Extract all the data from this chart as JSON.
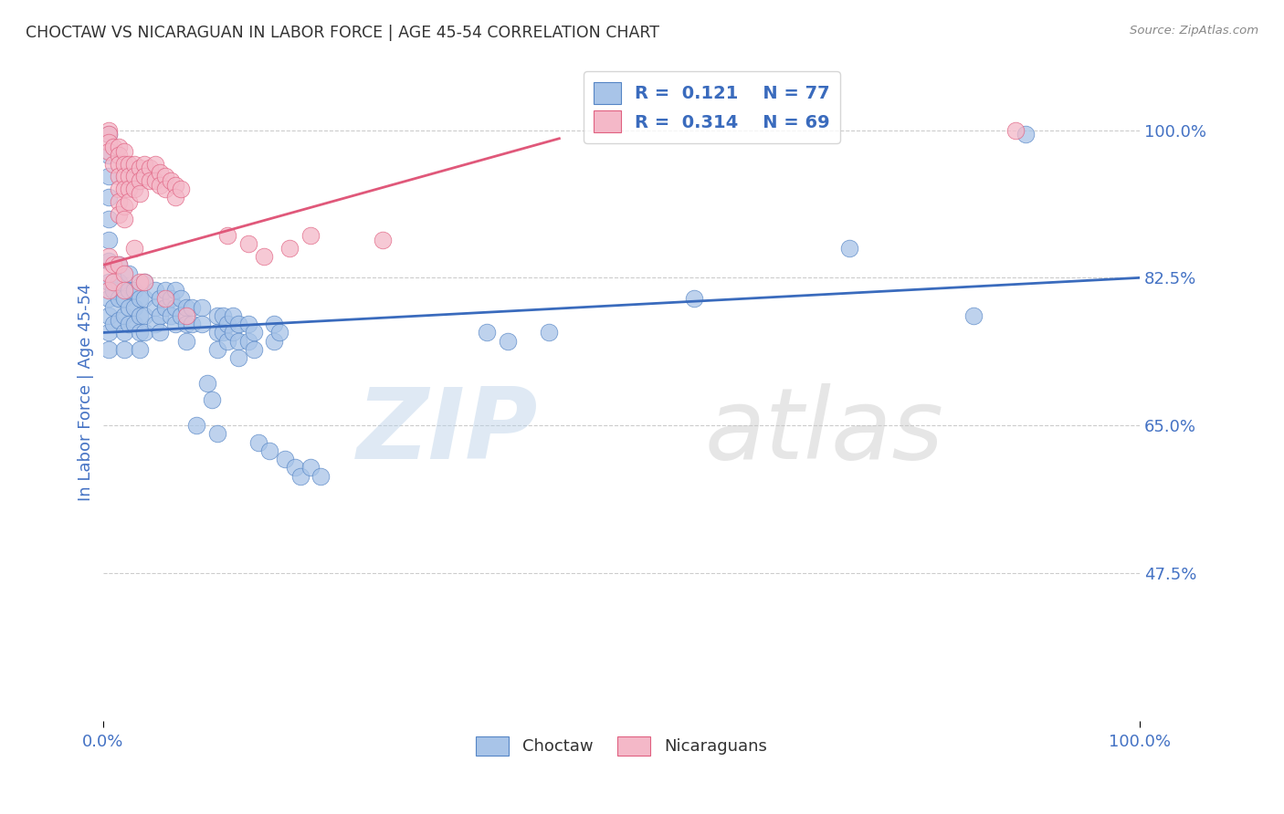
{
  "title": "CHOCTAW VS NICARAGUAN IN LABOR FORCE | AGE 45-54 CORRELATION CHART",
  "source": "Source: ZipAtlas.com",
  "ylabel": "In Labor Force | Age 45-54",
  "xlim": [
    0.0,
    1.0
  ],
  "ylim": [
    0.3,
    1.08
  ],
  "xtick_labels": [
    "0.0%",
    "100.0%"
  ],
  "xtick_positions": [
    0.0,
    1.0
  ],
  "ytick_labels": [
    "100.0%",
    "82.5%",
    "65.0%",
    "47.5%"
  ],
  "ytick_positions": [
    1.0,
    0.825,
    0.65,
    0.475
  ],
  "choctaw_color": "#a8c4e8",
  "nicaraguan_color": "#f4b8c8",
  "choctaw_edge_color": "#5585c5",
  "nicaraguan_edge_color": "#e06080",
  "choctaw_line_color": "#3a6bbd",
  "nicaraguan_line_color": "#e0587a",
  "choctaw_R": "0.121",
  "choctaw_N": "77",
  "nicaraguan_R": "0.314",
  "nicaraguan_N": "69",
  "watermark_zip": "ZIP",
  "watermark_atlas": "atlas",
  "background_color": "#ffffff",
  "grid_color": "#cccccc",
  "title_color": "#333333",
  "right_tick_color": "#4472c4",
  "bottom_tick_color": "#4472c4",
  "ylabel_color": "#4472c4",
  "legend_text_color": "#4472c4",
  "choctaw_points": [
    [
      0.005,
      0.995
    ],
    [
      0.005,
      0.97
    ],
    [
      0.005,
      0.945
    ],
    [
      0.005,
      0.92
    ],
    [
      0.005,
      0.895
    ],
    [
      0.005,
      0.87
    ],
    [
      0.005,
      0.845
    ],
    [
      0.005,
      0.82
    ],
    [
      0.005,
      0.8
    ],
    [
      0.005,
      0.78
    ],
    [
      0.005,
      0.76
    ],
    [
      0.005,
      0.74
    ],
    [
      0.01,
      0.81
    ],
    [
      0.01,
      0.79
    ],
    [
      0.01,
      0.77
    ],
    [
      0.015,
      0.84
    ],
    [
      0.015,
      0.82
    ],
    [
      0.015,
      0.8
    ],
    [
      0.015,
      0.775
    ],
    [
      0.02,
      0.8
    ],
    [
      0.02,
      0.78
    ],
    [
      0.02,
      0.76
    ],
    [
      0.02,
      0.74
    ],
    [
      0.025,
      0.83
    ],
    [
      0.025,
      0.81
    ],
    [
      0.025,
      0.79
    ],
    [
      0.025,
      0.77
    ],
    [
      0.03,
      0.81
    ],
    [
      0.03,
      0.79
    ],
    [
      0.03,
      0.77
    ],
    [
      0.035,
      0.8
    ],
    [
      0.035,
      0.78
    ],
    [
      0.035,
      0.76
    ],
    [
      0.035,
      0.74
    ],
    [
      0.04,
      0.82
    ],
    [
      0.04,
      0.8
    ],
    [
      0.04,
      0.78
    ],
    [
      0.04,
      0.76
    ],
    [
      0.05,
      0.81
    ],
    [
      0.05,
      0.79
    ],
    [
      0.05,
      0.77
    ],
    [
      0.055,
      0.8
    ],
    [
      0.055,
      0.78
    ],
    [
      0.055,
      0.76
    ],
    [
      0.06,
      0.81
    ],
    [
      0.06,
      0.79
    ],
    [
      0.065,
      0.8
    ],
    [
      0.065,
      0.78
    ],
    [
      0.07,
      0.81
    ],
    [
      0.07,
      0.79
    ],
    [
      0.07,
      0.77
    ],
    [
      0.075,
      0.8
    ],
    [
      0.075,
      0.78
    ],
    [
      0.08,
      0.79
    ],
    [
      0.08,
      0.77
    ],
    [
      0.08,
      0.75
    ],
    [
      0.085,
      0.79
    ],
    [
      0.085,
      0.77
    ],
    [
      0.095,
      0.79
    ],
    [
      0.095,
      0.77
    ],
    [
      0.11,
      0.78
    ],
    [
      0.11,
      0.76
    ],
    [
      0.11,
      0.74
    ],
    [
      0.115,
      0.78
    ],
    [
      0.115,
      0.76
    ],
    [
      0.12,
      0.77
    ],
    [
      0.12,
      0.75
    ],
    [
      0.125,
      0.78
    ],
    [
      0.125,
      0.76
    ],
    [
      0.13,
      0.77
    ],
    [
      0.13,
      0.75
    ],
    [
      0.13,
      0.73
    ],
    [
      0.14,
      0.77
    ],
    [
      0.14,
      0.75
    ],
    [
      0.145,
      0.76
    ],
    [
      0.145,
      0.74
    ],
    [
      0.165,
      0.77
    ],
    [
      0.165,
      0.75
    ],
    [
      0.17,
      0.76
    ],
    [
      0.1,
      0.7
    ],
    [
      0.105,
      0.68
    ],
    [
      0.09,
      0.65
    ],
    [
      0.11,
      0.64
    ],
    [
      0.15,
      0.63
    ],
    [
      0.16,
      0.62
    ],
    [
      0.175,
      0.61
    ],
    [
      0.185,
      0.6
    ],
    [
      0.19,
      0.59
    ],
    [
      0.2,
      0.6
    ],
    [
      0.21,
      0.59
    ],
    [
      0.37,
      0.76
    ],
    [
      0.39,
      0.75
    ],
    [
      0.43,
      0.76
    ],
    [
      0.57,
      0.8
    ],
    [
      0.72,
      0.86
    ],
    [
      0.84,
      0.78
    ],
    [
      0.89,
      0.995
    ]
  ],
  "nicaraguan_points": [
    [
      0.005,
      1.0
    ],
    [
      0.005,
      0.995
    ],
    [
      0.005,
      0.985
    ],
    [
      0.005,
      0.975
    ],
    [
      0.01,
      0.98
    ],
    [
      0.01,
      0.96
    ],
    [
      0.015,
      0.98
    ],
    [
      0.015,
      0.97
    ],
    [
      0.015,
      0.96
    ],
    [
      0.015,
      0.945
    ],
    [
      0.015,
      0.93
    ],
    [
      0.015,
      0.915
    ],
    [
      0.015,
      0.9
    ],
    [
      0.02,
      0.975
    ],
    [
      0.02,
      0.96
    ],
    [
      0.02,
      0.945
    ],
    [
      0.02,
      0.93
    ],
    [
      0.02,
      0.91
    ],
    [
      0.02,
      0.895
    ],
    [
      0.025,
      0.96
    ],
    [
      0.025,
      0.945
    ],
    [
      0.025,
      0.93
    ],
    [
      0.025,
      0.915
    ],
    [
      0.03,
      0.96
    ],
    [
      0.03,
      0.945
    ],
    [
      0.03,
      0.93
    ],
    [
      0.035,
      0.955
    ],
    [
      0.035,
      0.94
    ],
    [
      0.035,
      0.925
    ],
    [
      0.04,
      0.96
    ],
    [
      0.04,
      0.945
    ],
    [
      0.045,
      0.955
    ],
    [
      0.045,
      0.94
    ],
    [
      0.05,
      0.96
    ],
    [
      0.05,
      0.94
    ],
    [
      0.055,
      0.95
    ],
    [
      0.055,
      0.935
    ],
    [
      0.06,
      0.945
    ],
    [
      0.06,
      0.93
    ],
    [
      0.065,
      0.94
    ],
    [
      0.07,
      0.935
    ],
    [
      0.07,
      0.92
    ],
    [
      0.075,
      0.93
    ],
    [
      0.005,
      0.85
    ],
    [
      0.005,
      0.83
    ],
    [
      0.005,
      0.81
    ],
    [
      0.01,
      0.84
    ],
    [
      0.01,
      0.82
    ],
    [
      0.015,
      0.84
    ],
    [
      0.02,
      0.83
    ],
    [
      0.02,
      0.81
    ],
    [
      0.03,
      0.86
    ],
    [
      0.035,
      0.82
    ],
    [
      0.04,
      0.82
    ],
    [
      0.06,
      0.8
    ],
    [
      0.08,
      0.78
    ],
    [
      0.12,
      0.875
    ],
    [
      0.14,
      0.865
    ],
    [
      0.155,
      0.85
    ],
    [
      0.18,
      0.86
    ],
    [
      0.2,
      0.875
    ],
    [
      0.27,
      0.87
    ],
    [
      0.88,
      1.0
    ]
  ],
  "choctaw_line_x": [
    0.0,
    1.0
  ],
  "choctaw_line_y": [
    0.76,
    0.825
  ],
  "nicaraguan_line_x": [
    0.0,
    0.44
  ],
  "nicaraguan_line_y": [
    0.84,
    0.99
  ]
}
